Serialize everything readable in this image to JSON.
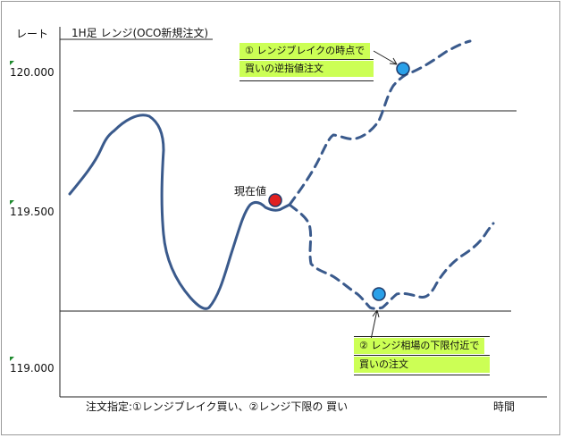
{
  "chart_title": "1H足 レンジ(OCO新規注文)",
  "y_axis_label": "レート",
  "x_axis_label": "時間",
  "y_ticks": [
    "120.000",
    "119.500",
    "119.000"
  ],
  "current_price_label": "現在値",
  "annotation_1": {
    "line1": "① レンジブレイクの時点で",
    "line2": "買いの逆指値注文"
  },
  "annotation_2": {
    "line1": "② レンジ相場の下限付近で",
    "line2": "買いの注文"
  },
  "footer": "注文指定:①レンジブレイク買い、②レンジ下限の 買い",
  "colors": {
    "price_line": "#3a5a8c",
    "current_dot": "#e02020",
    "order_dot": "#2aa0e8",
    "note_bg": "#ccff55"
  }
}
